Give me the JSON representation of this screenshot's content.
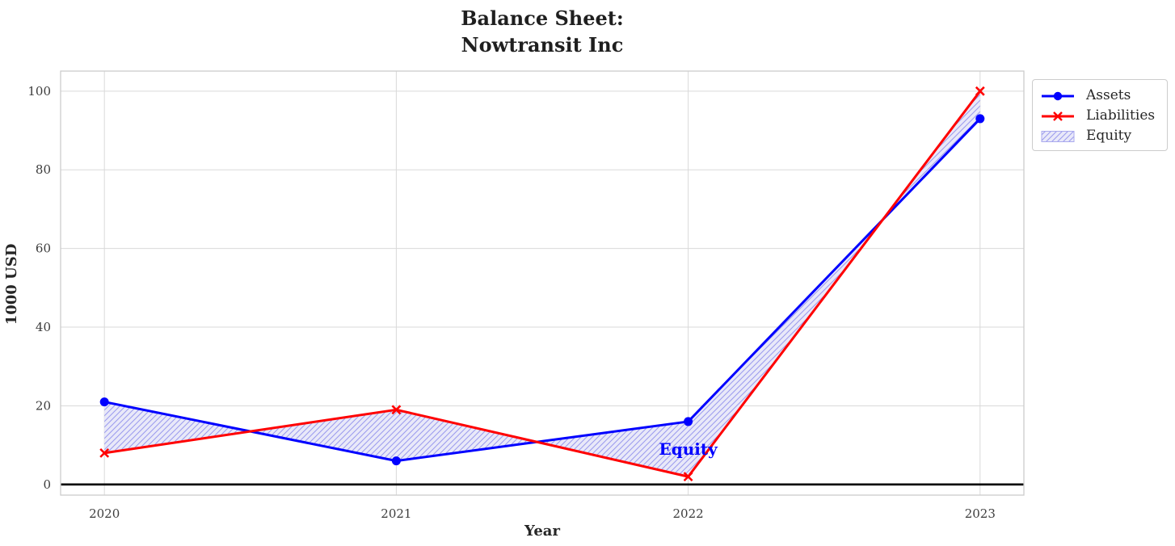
{
  "chart_data": {
    "type": "line",
    "title": "Balance Sheet:\nNowtransit Inc",
    "xlabel": "Year",
    "ylabel": "1000 USD",
    "x": [
      2020,
      2021,
      2022,
      2023
    ],
    "xticks": [
      "2020",
      "2021",
      "2022",
      "2023"
    ],
    "yticks": [
      0,
      20,
      40,
      60,
      80,
      100
    ],
    "xlim": [
      2019.85,
      2023.15
    ],
    "ylim": [
      -2.7,
      105.1
    ],
    "grid": true,
    "legend_position": "outside-upper-right",
    "series": [
      {
        "name": "Assets",
        "values": [
          21,
          6,
          16,
          93
        ],
        "color": "#0000ff",
        "marker": "circle"
      },
      {
        "name": "Liabilities",
        "values": [
          8,
          19,
          2,
          100
        ],
        "color": "#ff0000",
        "marker": "x"
      }
    ],
    "equity_band": {
      "label": "Equity",
      "between": [
        "Assets",
        "Liabilities"
      ],
      "fill_color": "#e9e9f9",
      "hatch_color": "#9a9aee",
      "hatch": "diagonal"
    },
    "annotation": {
      "text": "Equity",
      "x": 2022,
      "y": 9,
      "color": "#0000ff"
    },
    "baseline": {
      "y": 0,
      "color": "#000000"
    }
  }
}
